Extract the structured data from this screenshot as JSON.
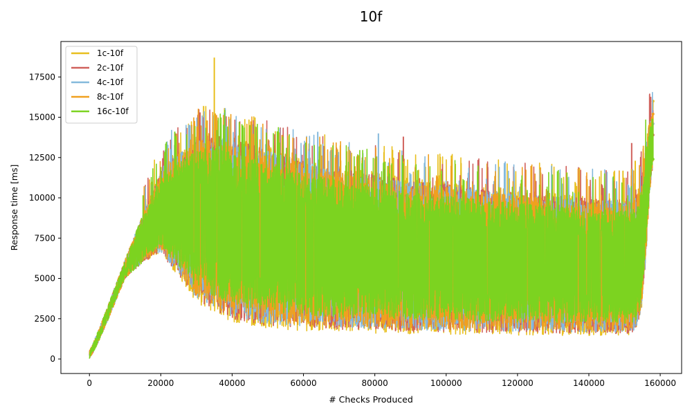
{
  "chart_data": {
    "type": "line",
    "title": "10f",
    "xlabel": "# Checks Produced",
    "ylabel": "Response time [ms]",
    "xlim": [
      -8000,
      166000
    ],
    "ylim": [
      -900,
      19700
    ],
    "xticks": [
      0,
      20000,
      40000,
      60000,
      80000,
      100000,
      120000,
      140000,
      160000
    ],
    "xtick_labels": [
      "0",
      "20000",
      "40000",
      "60000",
      "80000",
      "100000",
      "120000",
      "140000",
      "160000"
    ],
    "yticks": [
      0,
      2500,
      5000,
      7500,
      10000,
      12500,
      15000,
      17500
    ],
    "ytick_labels": [
      "0",
      "2500",
      "5000",
      "7500",
      "10000",
      "12500",
      "15000",
      "17500"
    ],
    "grid": false,
    "legend": "upper-left",
    "envelope": {
      "x": [
        0,
        2000,
        5000,
        10000,
        15000,
        20000,
        25000,
        30000,
        35000,
        40000,
        50000,
        60000,
        70000,
        80000,
        90000,
        100000,
        110000,
        120000,
        130000,
        140000,
        150000,
        153000,
        154500,
        156000,
        157000,
        158000
      ],
      "upper": [
        500,
        1500,
        3200,
        6200,
        9000,
        11700,
        13000,
        13800,
        14200,
        13800,
        13200,
        12500,
        12000,
        11600,
        11200,
        11000,
        10700,
        10500,
        10300,
        10100,
        10000,
        10200,
        11000,
        13500,
        14800,
        15500
      ],
      "lower": [
        0,
        800,
        2300,
        5000,
        6000,
        6500,
        5000,
        3500,
        2800,
        2300,
        1900,
        1750,
        1650,
        1600,
        1550,
        1530,
        1500,
        1480,
        1470,
        1450,
        1440,
        1500,
        2500,
        6000,
        10000,
        12000
      ]
    },
    "series": [
      {
        "name": "1c-10f",
        "color": "#e8bf1e",
        "end_value": 16000,
        "amplitude": 1.0,
        "spikes": [
          [
            35000,
            18700
          ],
          [
            32000,
            15700
          ],
          [
            30500,
            15200
          ],
          [
            153000,
            12300
          ]
        ]
      },
      {
        "name": "2c-10f",
        "color": "#d0605b",
        "end_value": 13900,
        "amplitude": 0.97,
        "spikes": [
          [
            31000,
            15300
          ],
          [
            88000,
            13800
          ],
          [
            152000,
            13400
          ],
          [
            28000,
            14500
          ]
        ]
      },
      {
        "name": "4c-10f",
        "color": "#84b9dc",
        "end_value": 14600,
        "amplitude": 0.95,
        "spikes": [
          [
            81000,
            14000
          ],
          [
            47000,
            14300
          ],
          [
            64000,
            14100
          ]
        ]
      },
      {
        "name": "8c-10f",
        "color": "#f0a01f",
        "end_value": 15200,
        "amplitude": 0.93,
        "spikes": [
          [
            33000,
            14800
          ],
          [
            54000,
            13900
          ]
        ]
      },
      {
        "name": "16c-10f",
        "color": "#7cd320",
        "end_value": 12400,
        "amplitude": 0.82,
        "spikes": []
      }
    ]
  }
}
